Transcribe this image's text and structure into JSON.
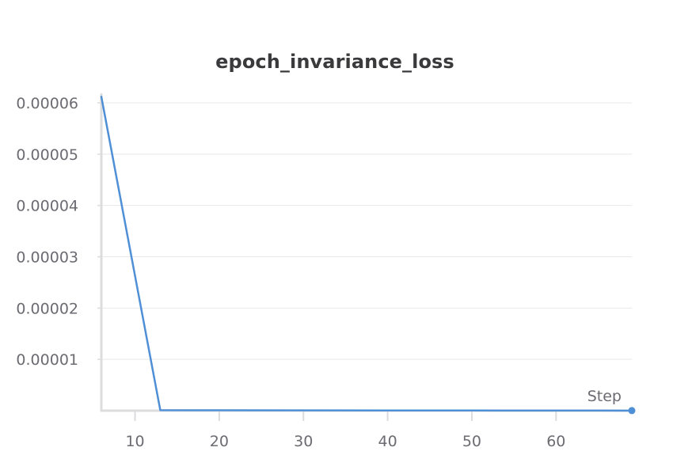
{
  "chart_data": {
    "type": "line",
    "title": "epoch_invariance_loss",
    "xlabel": "Step",
    "ylabel": "",
    "xlim": [
      6,
      69
    ],
    "ylim": [
      0,
      6e-05
    ],
    "x_ticks": [
      10,
      20,
      30,
      40,
      50,
      60
    ],
    "x_tick_labels": [
      "10",
      "20",
      "30",
      "40",
      "50",
      "60"
    ],
    "y_ticks": [
      1e-05,
      2e-05,
      3e-05,
      4e-05,
      5e-05,
      6e-05
    ],
    "y_tick_labels": [
      "0.00001",
      "0.00002",
      "0.00003",
      "0.00004",
      "0.00005",
      "0.00006"
    ],
    "grid": true,
    "series": [
      {
        "color": "#4f8fd6",
        "x": [
          6,
          13,
          20,
          30,
          40,
          50,
          60,
          69
        ],
        "y": [
          6.12e-05,
          1e-07,
          8e-08,
          5e-08,
          4e-08,
          3e-08,
          2e-08,
          1e-08
        ]
      }
    ],
    "colors": {
      "line": "#4f8fd6",
      "grid": "#e8e8ea",
      "axis": "#dcdcdf",
      "text": "#6b6b72",
      "title": "#3a3a3c"
    }
  }
}
